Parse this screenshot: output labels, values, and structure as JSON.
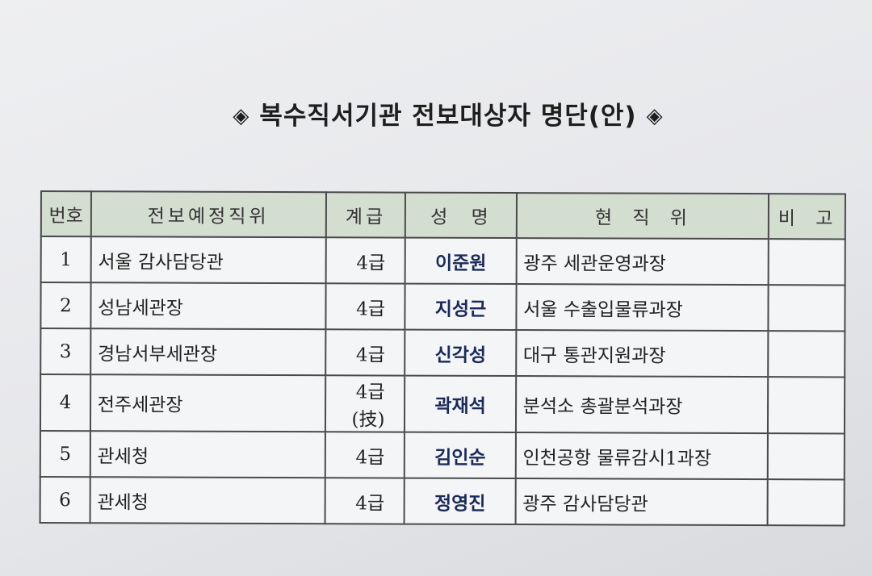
{
  "title": {
    "text": "복수직서기관 전보대상자 명단(안)",
    "marker": "◈"
  },
  "table": {
    "headers": [
      "번호",
      "전보예정직위",
      "계급",
      "성 명",
      "현 직 위",
      "비 고"
    ],
    "rows": [
      {
        "no": "1",
        "position": "서울 감사담당관",
        "grade": "4급",
        "name": "이준원",
        "current": "광주 세관운영과장",
        "note": ""
      },
      {
        "no": "2",
        "position": "성남세관장",
        "grade": "4급",
        "name": "지성근",
        "current": "서울 수출입물류과장",
        "note": ""
      },
      {
        "no": "3",
        "position": "경남서부세관장",
        "grade": "4급",
        "name": "신각성",
        "current": "대구 통관지원과장",
        "note": ""
      },
      {
        "no": "4",
        "position": "전주세관장",
        "grade": "4급(技)",
        "name": "곽재석",
        "current": "분석소 총괄분석과장",
        "note": ""
      },
      {
        "no": "5",
        "position": "관세청",
        "grade": "4급",
        "name": "김인순",
        "current": "인천공항 물류감시1과장",
        "note": ""
      },
      {
        "no": "6",
        "position": "관세청",
        "grade": "4급",
        "name": "정영진",
        "current": "광주 감사담당관",
        "note": ""
      }
    ]
  }
}
